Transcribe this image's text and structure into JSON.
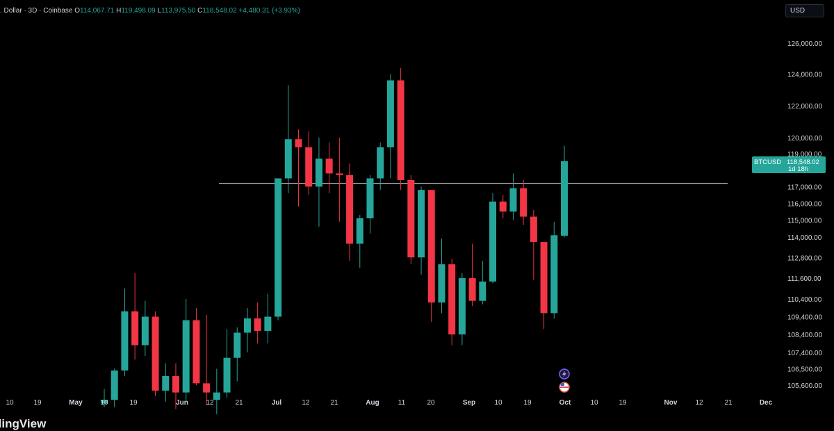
{
  "legend": {
    "symbol_text": ". Dollar · 3D · Coinbase",
    "o_label": "O",
    "o_value": "114,067.71",
    "h_label": "H",
    "h_value": "119,498.09",
    "l_label": "L",
    "l_value": "113,975.50",
    "c_label": "C",
    "c_value": "118,548.02",
    "change": "+4,480.31 (+3.93%)"
  },
  "currency_label": "USD",
  "brand": "dingView",
  "price_tag": {
    "symbol": "BTCUSD",
    "price": "118,548.02",
    "countdown": "1d 18h"
  },
  "colors": {
    "up": "#26a69a",
    "down": "#f23645",
    "background": "#000000",
    "hline": "#e0e0e0",
    "text": "#d1d4dc"
  },
  "chart_data": {
    "type": "candlestick",
    "timeframe": "3D",
    "y_axis_labels": [
      "126,000.00",
      "124,000.00",
      "122,000.00",
      "120,000.00",
      "119,000.00",
      "117,000.00",
      "116,000.00",
      "115,000.00",
      "114,000.00",
      "112,800.00",
      "111,600.00",
      "110,400.00",
      "109,400.00",
      "108,400.00",
      "107,400.00",
      "106,500.00",
      "105,600.00"
    ],
    "y_scale": "logarithmic",
    "x_axis_labels": [
      "10",
      "19",
      "May",
      "10",
      "19",
      "Jun",
      "12",
      "21",
      "Jul",
      "12",
      "21",
      "Aug",
      "11",
      "20",
      "Sep",
      "10",
      "19",
      "Oct",
      "10",
      "19",
      "Nov",
      "12",
      "21",
      "Dec"
    ],
    "horizontal_line": 117200,
    "candles": [
      {
        "o": 104600,
        "h": 105400,
        "l": 104400,
        "c": 104800
      },
      {
        "o": 104800,
        "h": 106500,
        "l": 104400,
        "c": 106400
      },
      {
        "o": 106400,
        "h": 111000,
        "l": 106100,
        "c": 109700
      },
      {
        "o": 109700,
        "h": 111900,
        "l": 107000,
        "c": 107800
      },
      {
        "o": 107800,
        "h": 110300,
        "l": 107200,
        "c": 109400
      },
      {
        "o": 109400,
        "h": 109700,
        "l": 105000,
        "c": 105300
      },
      {
        "o": 105300,
        "h": 106800,
        "l": 104700,
        "c": 106100
      },
      {
        "o": 106100,
        "h": 106800,
        "l": 104300,
        "c": 105200
      },
      {
        "o": 105200,
        "h": 110400,
        "l": 104800,
        "c": 109200
      },
      {
        "o": 109200,
        "h": 109900,
        "l": 105600,
        "c": 105700
      },
      {
        "o": 105700,
        "h": 109500,
        "l": 104500,
        "c": 105200
      },
      {
        "o": 104800,
        "h": 106500,
        "l": 103800,
        "c": 105200
      },
      {
        "o": 105200,
        "h": 108700,
        "l": 104900,
        "c": 107100
      },
      {
        "o": 107100,
        "h": 108800,
        "l": 105800,
        "c": 108500
      },
      {
        "o": 108500,
        "h": 109900,
        "l": 107400,
        "c": 109300
      },
      {
        "o": 109300,
        "h": 110200,
        "l": 107900,
        "c": 108600
      },
      {
        "o": 108600,
        "h": 110700,
        "l": 107900,
        "c": 109400
      },
      {
        "o": 109400,
        "h": 117500,
        "l": 109200,
        "c": 117500
      },
      {
        "o": 117500,
        "h": 123300,
        "l": 116600,
        "c": 119900
      },
      {
        "o": 119900,
        "h": 120500,
        "l": 115800,
        "c": 119400
      },
      {
        "o": 119400,
        "h": 120400,
        "l": 116500,
        "c": 117000
      },
      {
        "o": 117000,
        "h": 120000,
        "l": 114600,
        "c": 118700
      },
      {
        "o": 118700,
        "h": 119700,
        "l": 116600,
        "c": 117800
      },
      {
        "o": 117800,
        "h": 120000,
        "l": 114900,
        "c": 117700
      },
      {
        "o": 117700,
        "h": 118400,
        "l": 112600,
        "c": 113600
      },
      {
        "o": 113600,
        "h": 115300,
        "l": 112200,
        "c": 115100
      },
      {
        "o": 115100,
        "h": 117700,
        "l": 114200,
        "c": 117500
      },
      {
        "o": 117500,
        "h": 119700,
        "l": 116800,
        "c": 119400
      },
      {
        "o": 119400,
        "h": 124000,
        "l": 117500,
        "c": 123600
      },
      {
        "o": 123600,
        "h": 124400,
        "l": 116800,
        "c": 117400
      },
      {
        "o": 117400,
        "h": 117700,
        "l": 112400,
        "c": 112800
      },
      {
        "o": 112800,
        "h": 117000,
        "l": 111800,
        "c": 116800
      },
      {
        "o": 116800,
        "h": 116800,
        "l": 109100,
        "c": 110200
      },
      {
        "o": 110200,
        "h": 113900,
        "l": 109600,
        "c": 112400
      },
      {
        "o": 112400,
        "h": 112700,
        "l": 107800,
        "c": 108400
      },
      {
        "o": 108400,
        "h": 111900,
        "l": 107800,
        "c": 111600
      },
      {
        "o": 111600,
        "h": 113600,
        "l": 110000,
        "c": 110300
      },
      {
        "o": 110300,
        "h": 112600,
        "l": 110100,
        "c": 111400
      },
      {
        "o": 111400,
        "h": 116600,
        "l": 111300,
        "c": 116100
      },
      {
        "o": 116100,
        "h": 116500,
        "l": 115100,
        "c": 115500
      },
      {
        "o": 115500,
        "h": 117800,
        "l": 115000,
        "c": 116900
      },
      {
        "o": 116900,
        "h": 117400,
        "l": 114700,
        "c": 115200
      },
      {
        "o": 115200,
        "h": 115600,
        "l": 111500,
        "c": 113700
      },
      {
        "o": 113700,
        "h": 113700,
        "l": 108700,
        "c": 109600
      },
      {
        "o": 109600,
        "h": 114900,
        "l": 109300,
        "c": 114100
      },
      {
        "o": 114067.71,
        "h": 119498.09,
        "l": 113975.5,
        "c": 118548.02
      }
    ]
  }
}
